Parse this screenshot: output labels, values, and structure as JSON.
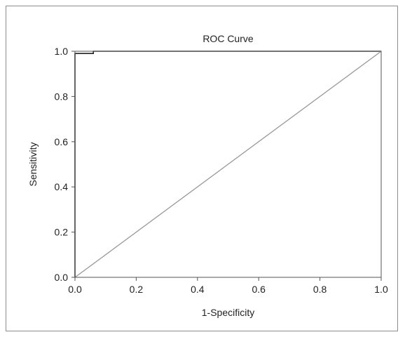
{
  "chart_data": {
    "type": "line",
    "title": "ROC Curve",
    "xlabel": "1-Specificity",
    "ylabel": "Sensitivity",
    "xlim": [
      0.0,
      1.0
    ],
    "ylim": [
      0.0,
      1.0
    ],
    "xticks": [
      "0.0",
      "0.2",
      "0.4",
      "0.6",
      "0.8",
      "1.0"
    ],
    "yticks": [
      "0.0",
      "0.2",
      "0.4",
      "0.6",
      "0.8",
      "1.0"
    ],
    "grid": false,
    "series": [
      {
        "role": "roc",
        "color": "#222222",
        "x": [
          0.0,
          0.0,
          0.06,
          0.06,
          1.0
        ],
        "y": [
          0.0,
          0.99,
          0.99,
          1.0,
          1.0
        ]
      },
      {
        "role": "reference",
        "color": "#999999",
        "x": [
          0.0,
          1.0
        ],
        "y": [
          0.0,
          1.0
        ]
      }
    ]
  }
}
